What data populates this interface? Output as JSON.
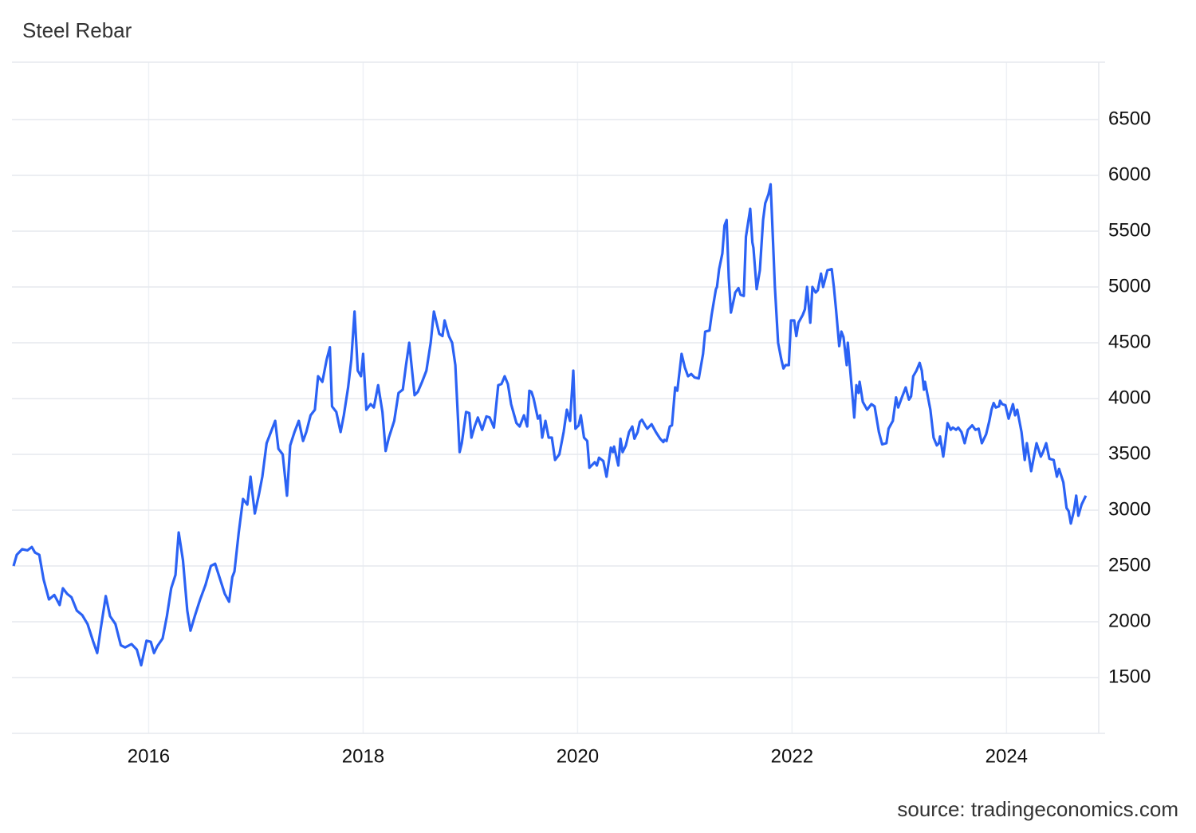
{
  "chart_data": {
    "type": "line",
    "title": "Steel Rebar",
    "source": "source: tradingeconomics.com",
    "color": "#2b62f4",
    "grid": true,
    "xlim": [
      2014.74,
      2024.86
    ],
    "xticks": [
      2016,
      2018,
      2020,
      2022,
      2024
    ],
    "ylim": [
      1000,
      7000
    ],
    "yticks": [
      1500,
      2000,
      2500,
      3000,
      3500,
      4000,
      4500,
      5000,
      5500,
      6000,
      6500
    ],
    "x": [
      2014.74,
      2014.77,
      2014.82,
      2014.87,
      2014.91,
      2014.94,
      2014.98,
      2015.02,
      2015.07,
      2015.12,
      2015.17,
      2015.2,
      2015.24,
      2015.28,
      2015.33,
      2015.38,
      2015.43,
      2015.48,
      2015.52,
      2015.55,
      2015.6,
      2015.64,
      2015.69,
      2015.74,
      2015.78,
      2015.84,
      2015.89,
      2015.93,
      2015.98,
      2016.02,
      2016.05,
      2016.08,
      2016.13,
      2016.17,
      2016.21,
      2016.25,
      2016.28,
      2016.32,
      2016.36,
      2016.39,
      2016.43,
      2016.48,
      2016.53,
      2016.58,
      2016.62,
      2016.66,
      2016.71,
      2016.75,
      2016.78,
      2016.8,
      2016.84,
      2016.88,
      2016.92,
      2016.95,
      2016.99,
      2017.03,
      2017.06,
      2017.1,
      2017.14,
      2017.18,
      2017.21,
      2017.25,
      2017.29,
      2017.32,
      2017.36,
      2017.4,
      2017.44,
      2017.47,
      2017.51,
      2017.55,
      2017.58,
      2017.62,
      2017.66,
      2017.69,
      2017.71,
      2017.75,
      2017.79,
      2017.82,
      2017.86,
      2017.89,
      2017.92,
      2017.95,
      2017.98,
      2018.0,
      2018.03,
      2018.07,
      2018.1,
      2018.14,
      2018.18,
      2018.21,
      2018.24,
      2018.29,
      2018.33,
      2018.37,
      2018.4,
      2018.43,
      2018.48,
      2018.51,
      2018.55,
      2018.59,
      2018.63,
      2018.66,
      2018.71,
      2018.74,
      2018.76,
      2018.8,
      2018.83,
      2018.86,
      2018.9,
      2018.92,
      2018.96,
      2018.99,
      2019.01,
      2019.04,
      2019.07,
      2019.11,
      2019.15,
      2019.18,
      2019.22,
      2019.26,
      2019.29,
      2019.32,
      2019.35,
      2019.38,
      2019.43,
      2019.46,
      2019.48,
      2019.5,
      2019.53,
      2019.55,
      2019.57,
      2019.59,
      2019.63,
      2019.65,
      2019.67,
      2019.7,
      2019.73,
      2019.76,
      2019.79,
      2019.83,
      2019.87,
      2019.9,
      2019.93,
      2019.96,
      2019.98,
      2020.01,
      2020.03,
      2020.06,
      2020.09,
      2020.11,
      2020.13,
      2020.16,
      2020.18,
      2020.2,
      2020.24,
      2020.27,
      2020.31,
      2020.33,
      2020.34,
      2020.38,
      2020.4,
      2020.42,
      2020.45,
      2020.48,
      2020.51,
      2020.53,
      2020.56,
      2020.58,
      2020.6,
      2020.63,
      2020.65,
      2020.69,
      2020.73,
      2020.77,
      2020.8,
      2020.81,
      2020.83,
      2020.86,
      2020.88,
      2020.91,
      2020.93,
      2020.97,
      2021.0,
      2021.03,
      2021.06,
      2021.09,
      2021.13,
      2021.17,
      2021.19,
      2021.23,
      2021.25,
      2021.29,
      2021.3,
      2021.32,
      2021.35,
      2021.37,
      2021.39,
      2021.41,
      2021.43,
      2021.46,
      2021.47,
      2021.5,
      2021.52,
      2021.55,
      2021.57,
      2021.61,
      2021.63,
      2021.64,
      2021.67,
      2021.7,
      2021.73,
      2021.75,
      2021.78,
      2021.8,
      2021.81,
      2021.84,
      2021.87,
      2021.9,
      2021.92,
      2021.94,
      2021.97,
      2021.99,
      2022.02,
      2022.04,
      2022.06,
      2022.1,
      2022.12,
      2022.14,
      2022.17,
      2022.19,
      2022.22,
      2022.24,
      2022.27,
      2022.29,
      2022.33,
      2022.37,
      2022.39,
      2022.41,
      2022.44,
      2022.46,
      2022.48,
      2022.51,
      2022.52,
      2022.57,
      2022.58,
      2022.6,
      2022.62,
      2022.63,
      2022.66,
      2022.7,
      2022.74,
      2022.77,
      2022.81,
      2022.84,
      2022.88,
      2022.9,
      2022.94,
      2022.97,
      2022.99,
      2023.02,
      2023.06,
      2023.09,
      2023.11,
      2023.13,
      2023.16,
      2023.19,
      2023.21,
      2023.23,
      2023.24,
      2023.28,
      2023.29,
      2023.32,
      2023.35,
      2023.37,
      2023.38,
      2023.41,
      2023.43,
      2023.45,
      2023.48,
      2023.5,
      2023.53,
      2023.55,
      2023.58,
      2023.61,
      2023.64,
      2023.68,
      2023.71,
      2023.74,
      2023.77,
      2023.81,
      2023.84,
      2023.86,
      2023.88,
      2023.9,
      2023.93,
      2023.94,
      2023.96,
      2023.99,
      2024.02,
      2024.06,
      2024.08,
      2024.1,
      2024.14,
      2024.17,
      2024.19,
      2024.23,
      2024.25,
      2024.28,
      2024.32,
      2024.34,
      2024.37,
      2024.4,
      2024.44,
      2024.47,
      2024.49,
      2024.53,
      2024.56,
      2024.58,
      2024.6,
      2024.63,
      2024.65,
      2024.67,
      2024.7,
      2024.74
    ],
    "values": [
      2500,
      2600,
      2650,
      2640,
      2670,
      2620,
      2600,
      2380,
      2200,
      2240,
      2150,
      2300,
      2250,
      2220,
      2100,
      2060,
      1980,
      1830,
      1720,
      1920,
      2230,
      2050,
      1980,
      1790,
      1770,
      1800,
      1750,
      1610,
      1830,
      1820,
      1720,
      1780,
      1850,
      2050,
      2300,
      2420,
      2800,
      2550,
      2100,
      1920,
      2050,
      2200,
      2330,
      2500,
      2520,
      2400,
      2250,
      2180,
      2400,
      2450,
      2800,
      3100,
      3050,
      3300,
      2970,
      3150,
      3300,
      3600,
      3700,
      3800,
      3550,
      3500,
      3130,
      3580,
      3700,
      3800,
      3620,
      3700,
      3850,
      3900,
      4200,
      4150,
      4350,
      4460,
      3930,
      3880,
      3700,
      3850,
      4100,
      4350,
      4780,
      4250,
      4200,
      4400,
      3900,
      3950,
      3920,
      4120,
      3880,
      3530,
      3650,
      3800,
      4050,
      4080,
      4300,
      4500,
      4030,
      4060,
      4150,
      4250,
      4500,
      4780,
      4580,
      4560,
      4700,
      4560,
      4500,
      4300,
      3520,
      3600,
      3880,
      3870,
      3650,
      3750,
      3830,
      3720,
      3840,
      3830,
      3740,
      4120,
      4130,
      4200,
      4130,
      3950,
      3780,
      3750,
      3800,
      3850,
      3750,
      4070,
      4060,
      4000,
      3820,
      3850,
      3650,
      3800,
      3650,
      3650,
      3450,
      3500,
      3700,
      3900,
      3800,
      4250,
      3730,
      3760,
      3850,
      3650,
      3620,
      3380,
      3400,
      3430,
      3400,
      3470,
      3440,
      3300,
      3560,
      3520,
      3570,
      3400,
      3640,
      3520,
      3580,
      3700,
      3750,
      3640,
      3700,
      3790,
      3810,
      3760,
      3730,
      3770,
      3700,
      3640,
      3610,
      3630,
      3620,
      3750,
      3760,
      4100,
      4070,
      4400,
      4280,
      4200,
      4220,
      4190,
      4180,
      4400,
      4600,
      4610,
      4750,
      4980,
      5000,
      5160,
      5300,
      5550,
      5600,
      5080,
      4770,
      4900,
      4950,
      4990,
      4930,
      4920,
      5450,
      5700,
      5400,
      5350,
      4980,
      5150,
      5600,
      5750,
      5830,
      5920,
      5700,
      5000,
      4500,
      4350,
      4270,
      4300,
      4300,
      4700,
      4700,
      4560,
      4680,
      4750,
      4800,
      5000,
      4680,
      5000,
      4950,
      4970,
      5120,
      5000,
      5150,
      5160,
      5000,
      4800,
      4470,
      4600,
      4550,
      4300,
      4500,
      3950,
      3830,
      4120,
      4050,
      4150,
      3970,
      3900,
      3950,
      3930,
      3700,
      3590,
      3600,
      3730,
      3800,
      4010,
      3920,
      4000,
      4100,
      3990,
      4020,
      4200,
      4250,
      4320,
      4250,
      4080,
      4150,
      3950,
      3900,
      3650,
      3580,
      3600,
      3660,
      3480,
      3620,
      3780,
      3720,
      3740,
      3720,
      3740,
      3700,
      3600,
      3720,
      3760,
      3720,
      3730,
      3600,
      3680,
      3800,
      3900,
      3960,
      3920,
      3930,
      3980,
      3950,
      3940,
      3820,
      3950,
      3850,
      3900,
      3700,
      3450,
      3600,
      3350,
      3450,
      3600,
      3480,
      3520,
      3600,
      3460,
      3450,
      3300,
      3370,
      3250,
      3020,
      2990,
      2880,
      3000,
      3130,
      2950,
      3050,
      3130
    ]
  }
}
